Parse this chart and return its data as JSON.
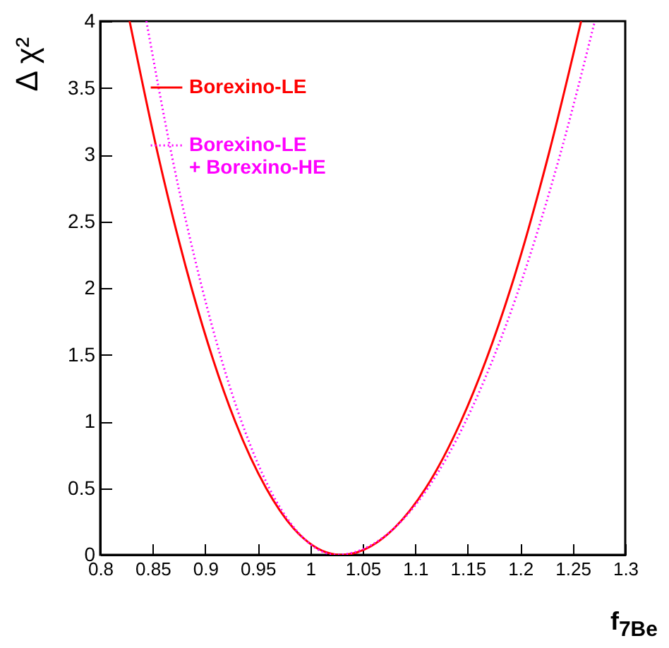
{
  "chart_data": {
    "type": "line",
    "xlabel": "f$_{7Be}$",
    "ylabel": "Δ χ²",
    "xlim": [
      0.8,
      1.3
    ],
    "xticks": [
      0.8,
      0.85,
      0.9,
      0.95,
      1,
      1.05,
      1.1,
      1.15,
      1.2,
      1.25,
      1.3
    ],
    "ylim": [
      0,
      4
    ],
    "yticks": [
      0,
      0.5,
      1,
      1.5,
      2,
      2.5,
      3,
      3.5,
      4
    ],
    "grid": false,
    "legend": "top left",
    "series": [
      {
        "name": "Borexino-LE",
        "color": "#ff0000",
        "line_style": "solid",
        "x": [
          0.828,
          0.855,
          0.887,
          0.9285,
          0.958,
          0.984,
          1.029,
          1.08,
          1.11,
          1.1435,
          1.191,
          1.227,
          1.258
        ],
        "values": [
          4,
          3,
          2,
          1,
          0.5,
          0.2,
          0,
          0.2,
          0.5,
          1,
          2,
          3,
          4
        ]
      },
      {
        "name": "Borexino-LE\n+ Borexino-HE",
        "color": "#ff00ff",
        "line_style": "dotted",
        "x": [
          0.844,
          0.868,
          0.897,
          0.9345,
          0.961,
          0.985,
          1.025,
          1.08,
          1.112,
          1.148,
          1.199,
          1.238,
          1.271
        ],
        "values": [
          4,
          3,
          2,
          1,
          0.5,
          0.2,
          0,
          0.2,
          0.5,
          1,
          2,
          3,
          4
        ]
      }
    ]
  }
}
